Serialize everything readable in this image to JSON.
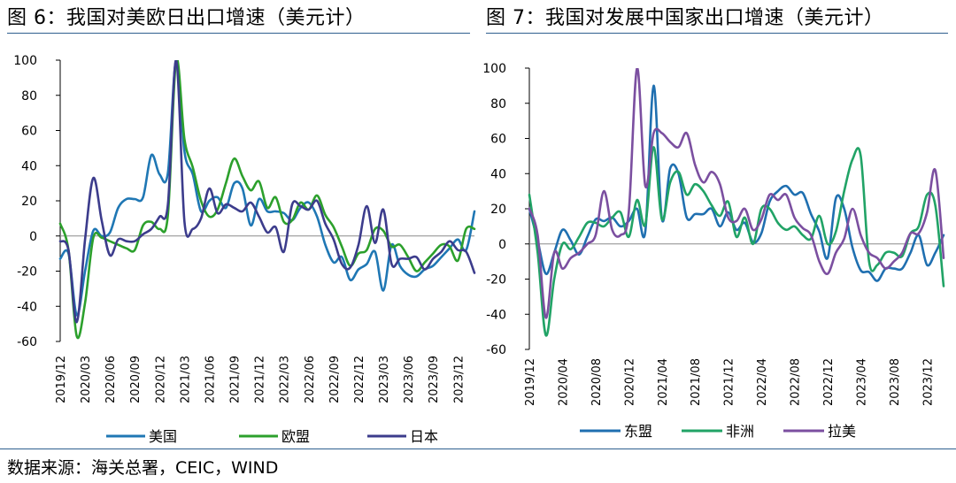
{
  "titles": {
    "left": "图 6：我国对美欧日出口增速（美元计）",
    "right": "图 7：我国对发展中国家出口增速（美元计）"
  },
  "source": "数据来源：海关总署，CEIC，WIND",
  "chart_data": [
    {
      "type": "line",
      "title": "图 6：我国对美欧日出口增速（美元计）",
      "ylabel": "",
      "xlabel": "",
      "ylim": [
        -60,
        100
      ],
      "yticks": [
        -60,
        -40,
        -20,
        0,
        20,
        40,
        60,
        80,
        100
      ],
      "grid": false,
      "legend_position": "bottom",
      "x_tick_labels": [
        "2019/12",
        "2020/03",
        "2020/06",
        "2020/09",
        "2020/12",
        "2021/03",
        "2021/06",
        "2021/09",
        "2021/12",
        "2022/03",
        "2022/06",
        "2022/09",
        "2022/12",
        "2023/03",
        "2023/06",
        "2023/09",
        "2023/12"
      ],
      "categories": [
        "2019/12",
        "2020/01",
        "2020/02",
        "2020/03",
        "2020/04",
        "2020/05",
        "2020/06",
        "2020/07",
        "2020/08",
        "2020/09",
        "2020/10",
        "2020/11",
        "2020/12",
        "2021/01",
        "2021/02",
        "2021/03",
        "2021/04",
        "2021/05",
        "2021/06",
        "2021/07",
        "2021/08",
        "2021/09",
        "2021/10",
        "2021/11",
        "2021/12",
        "2022/01",
        "2022/02",
        "2022/03",
        "2022/04",
        "2022/05",
        "2022/06",
        "2022/07",
        "2022/08",
        "2022/09",
        "2022/10",
        "2022/11",
        "2022/12",
        "2023/01",
        "2023/02",
        "2023/03",
        "2023/04",
        "2023/05",
        "2023/06",
        "2023/07",
        "2023/08",
        "2023/09",
        "2023/10",
        "2023/11",
        "2023/12",
        "2024/01",
        "2024/02"
      ],
      "series": [
        {
          "name": "美国",
          "color": "#1f77b4",
          "values": [
            -13,
            -10,
            -45,
            -20,
            3,
            0,
            2,
            16,
            21,
            21,
            22,
            46,
            35,
            36,
            100,
            48,
            35,
            14,
            20,
            22,
            16,
            30,
            27,
            6,
            21,
            14,
            14,
            13,
            9,
            16,
            19,
            11,
            -5,
            -15,
            -12,
            -25,
            -19,
            -16,
            -9,
            -31,
            -5,
            -17,
            -22,
            -23,
            -19,
            -17,
            -12,
            -7,
            -2,
            -8,
            14
          ]
        },
        {
          "name": "欧盟",
          "color": "#2ca02c",
          "values": [
            7,
            -8,
            -57,
            -38,
            -1,
            -1,
            -3,
            -5,
            -7,
            -8,
            6,
            8,
            4,
            12,
            100,
            55,
            39,
            20,
            11,
            15,
            30,
            44,
            34,
            26,
            31,
            16,
            22,
            8,
            9,
            19,
            15,
            23,
            12,
            5,
            -6,
            -17,
            -10,
            -8,
            4,
            3,
            -6,
            -5,
            -12,
            -20,
            -15,
            -10,
            -5,
            -6,
            -14,
            4,
            4
          ]
        },
        {
          "name": "日本",
          "color": "#3c3c8c",
          "values": [
            -3,
            -8,
            -49,
            -2,
            33,
            9,
            -11,
            -2,
            -3,
            -3,
            1,
            4,
            11,
            18,
            100,
            8,
            4,
            10,
            27,
            13,
            18,
            16,
            14,
            19,
            11,
            2,
            5,
            -9,
            18,
            17,
            15,
            20,
            7,
            -2,
            -16,
            -18,
            -5,
            17,
            -4,
            15,
            -16,
            -13,
            -13,
            -12,
            -19,
            -13,
            -9,
            -3,
            -8,
            -9,
            -21
          ]
        }
      ]
    },
    {
      "type": "line",
      "title": "图 7：我国对发展中国家出口增速（美元计）",
      "ylabel": "",
      "xlabel": "",
      "ylim": [
        -60,
        100
      ],
      "yticks": [
        -60,
        -40,
        -20,
        0,
        20,
        40,
        60,
        80,
        100
      ],
      "grid": false,
      "legend_position": "bottom",
      "x_tick_labels": [
        "2019/12",
        "2020/04",
        "2020/08",
        "2020/12",
        "2021/04",
        "2021/08",
        "2021/12",
        "2022/04",
        "2022/08",
        "2022/12",
        "2023/04",
        "2023/08",
        "2023/12"
      ],
      "categories": [
        "2019/12",
        "2020/01",
        "2020/02",
        "2020/03",
        "2020/04",
        "2020/05",
        "2020/06",
        "2020/07",
        "2020/08",
        "2020/09",
        "2020/10",
        "2020/11",
        "2020/12",
        "2021/01",
        "2021/02",
        "2021/03",
        "2021/04",
        "2021/05",
        "2021/06",
        "2021/07",
        "2021/08",
        "2021/09",
        "2021/10",
        "2021/11",
        "2021/12",
        "2022/01",
        "2022/02",
        "2022/03",
        "2022/04",
        "2022/05",
        "2022/06",
        "2022/07",
        "2022/08",
        "2022/09",
        "2022/10",
        "2022/11",
        "2022/12",
        "2023/01",
        "2023/02",
        "2023/03",
        "2023/04",
        "2023/05",
        "2023/06",
        "2023/07",
        "2023/08",
        "2023/09",
        "2023/10",
        "2023/11",
        "2023/12",
        "2024/01",
        "2024/02"
      ],
      "series": [
        {
          "name": "东盟",
          "color": "#1f6fb0",
          "values": [
            20,
            2,
            -17,
            -5,
            8,
            2,
            -6,
            4,
            14,
            13,
            15,
            10,
            13,
            20,
            7,
            90,
            14,
            43,
            40,
            15,
            17,
            17,
            20,
            10,
            18,
            8,
            12,
            1,
            6,
            24,
            30,
            33,
            28,
            29,
            17,
            7,
            -8,
            26,
            20,
            -2,
            -15,
            -16,
            -21,
            -14,
            -14,
            -14,
            -5,
            5,
            -12,
            -5,
            5
          ]
        },
        {
          "name": "非洲",
          "color": "#21a366",
          "values": [
            28,
            -5,
            -52,
            -20,
            0,
            -3,
            4,
            12,
            12,
            10,
            15,
            18,
            4,
            25,
            11,
            55,
            14,
            35,
            41,
            28,
            34,
            30,
            22,
            16,
            24,
            4,
            15,
            0,
            20,
            20,
            12,
            8,
            10,
            5,
            3,
            16,
            0,
            7,
            30,
            48,
            50,
            -10,
            -12,
            -5,
            -5,
            -7,
            6,
            10,
            28,
            22,
            -24
          ]
        },
        {
          "name": "拉美",
          "color": "#7b4fa0",
          "values": [
            20,
            5,
            -42,
            -5,
            -14,
            -8,
            -5,
            0,
            5,
            30,
            8,
            5,
            18,
            100,
            33,
            63,
            63,
            58,
            55,
            63,
            45,
            35,
            41,
            34,
            15,
            13,
            20,
            8,
            14,
            28,
            25,
            28,
            15,
            9,
            5,
            -10,
            -17,
            -5,
            3,
            20,
            5,
            -5,
            -8,
            -14,
            -10,
            -5,
            6,
            6,
            18,
            42,
            -8
          ]
        }
      ]
    }
  ]
}
